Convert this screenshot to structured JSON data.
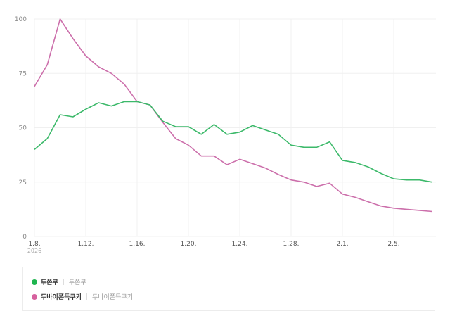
{
  "chart_data": {
    "type": "line",
    "title": "",
    "xlabel": "",
    "ylabel": "",
    "ylim": [
      0,
      100
    ],
    "yticks": [
      0,
      25,
      50,
      75,
      100
    ],
    "grid": true,
    "legend_position": "bottom",
    "x": [
      "1.8.",
      "1.9.",
      "1.10.",
      "1.11.",
      "1.12.",
      "1.13.",
      "1.14.",
      "1.15.",
      "1.16.",
      "1.17.",
      "1.18.",
      "1.19.",
      "1.20.",
      "1.21.",
      "1.22.",
      "1.23.",
      "1.24.",
      "1.25.",
      "1.26.",
      "1.27.",
      "1.28.",
      "1.29.",
      "1.30.",
      "1.31.",
      "2.1.",
      "2.2.",
      "2.3.",
      "2.4.",
      "2.5.",
      "2.6.",
      "2.7.",
      "2.8."
    ],
    "xtick_labels": [
      {
        "index": 0,
        "label": "1.8.",
        "sub": "2026"
      },
      {
        "index": 4,
        "label": "1.12."
      },
      {
        "index": 8,
        "label": "1.16."
      },
      {
        "index": 12,
        "label": "1.20."
      },
      {
        "index": 16,
        "label": "1.24."
      },
      {
        "index": 20,
        "label": "1.28."
      },
      {
        "index": 24,
        "label": "2.1."
      },
      {
        "index": 28,
        "label": "2.5."
      }
    ],
    "series": [
      {
        "name": "두쫀쿠",
        "sub": "두쫀쿠",
        "color": "#3cb96a",
        "dot_color": "#1fb54f",
        "values": [
          40,
          45,
          56,
          55,
          58.5,
          61.5,
          60,
          62,
          62,
          60.5,
          53,
          50.5,
          50.5,
          47,
          51.5,
          47,
          48,
          51,
          49,
          47,
          42,
          41,
          41,
          43.5,
          35,
          34,
          32,
          29,
          26.5,
          26,
          26,
          25
        ]
      },
      {
        "name": "두바이쫀득쿠키",
        "sub": "두바이쫀득쿠키",
        "color": "#cc6fab",
        "dot_color": "#d6619e",
        "values": [
          69,
          79,
          100,
          91,
          83,
          78,
          75,
          70,
          62,
          60.5,
          52.5,
          45,
          42,
          37,
          37,
          33,
          35.5,
          33.5,
          31.5,
          28.5,
          26,
          25,
          23,
          24.5,
          19.5,
          18,
          16,
          14,
          13,
          12.5,
          12,
          11.5
        ]
      }
    ]
  },
  "legend": {
    "items": [
      {
        "label": "두쫀쿠",
        "sub": "두쫀쿠"
      },
      {
        "label": "두바이쫀득쿠키",
        "sub": "두바이쫀득쿠키"
      }
    ]
  }
}
